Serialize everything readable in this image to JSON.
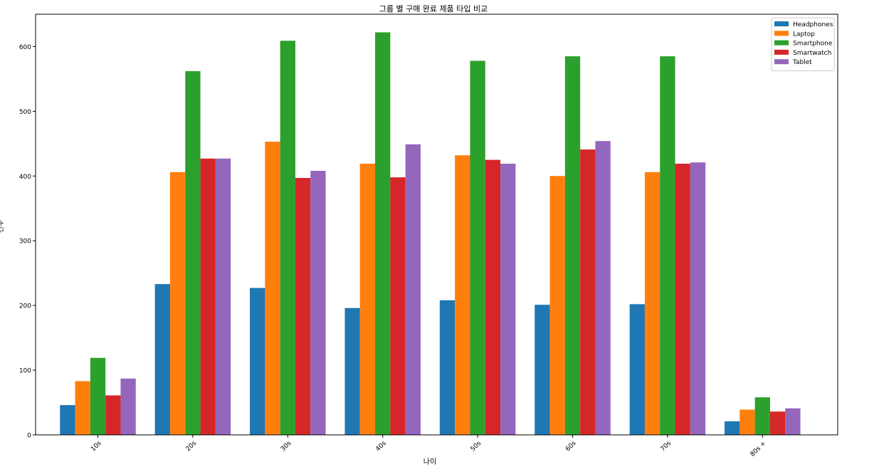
{
  "chart_data": {
    "type": "bar",
    "title": "그룹 별 구매 완료 제품 타입 비교",
    "xlabel": "나이",
    "ylabel": "건수",
    "categories": [
      "10s",
      "20s",
      "30s",
      "40s",
      "50s",
      "60s",
      "70s",
      "80s +"
    ],
    "ylim": [
      0,
      650
    ],
    "yticks": [
      0,
      100,
      200,
      300,
      400,
      500,
      600
    ],
    "ytick_labels": [
      "0",
      "100",
      "200",
      "300",
      "400",
      "500",
      "600"
    ],
    "legend_position": "top-right",
    "grid": false,
    "series": [
      {
        "name": "Headphones",
        "color": "#1f77b4",
        "values": [
          46,
          233,
          227,
          196,
          208,
          201,
          202,
          21
        ]
      },
      {
        "name": "Laptop",
        "color": "#ff7f0e",
        "values": [
          83,
          406,
          453,
          419,
          432,
          400,
          406,
          39
        ]
      },
      {
        "name": "Smartphone",
        "color": "#2ca02c",
        "values": [
          119,
          562,
          609,
          622,
          578,
          585,
          585,
          58
        ]
      },
      {
        "name": "Smartwatch",
        "color": "#d62728",
        "values": [
          61,
          427,
          397,
          398,
          425,
          441,
          419,
          36
        ]
      },
      {
        "name": "Tablet",
        "color": "#9467bd",
        "values": [
          87,
          427,
          408,
          449,
          419,
          454,
          421,
          41
        ]
      }
    ]
  }
}
